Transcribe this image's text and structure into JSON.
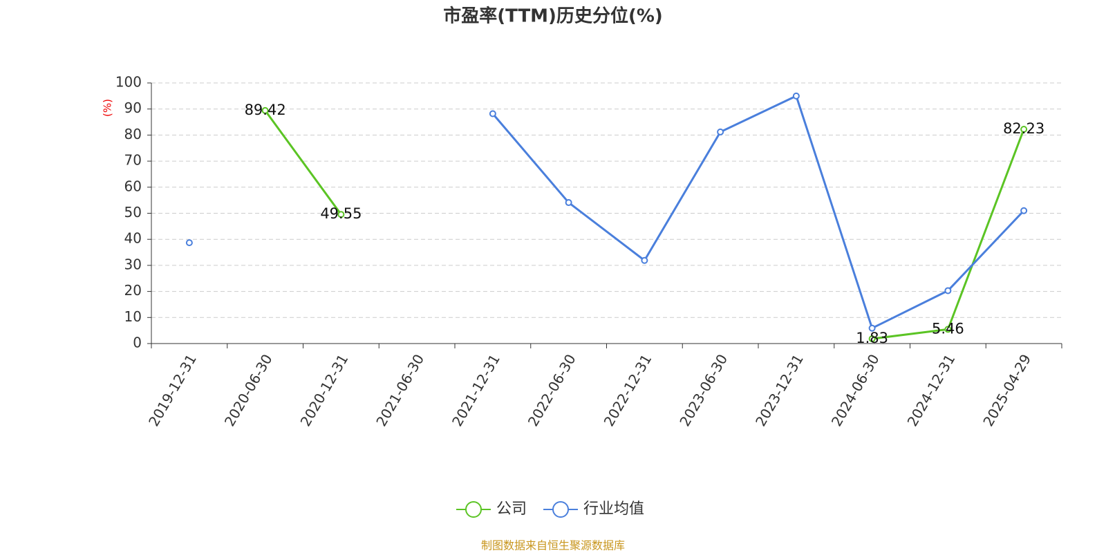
{
  "chart_data": {
    "type": "line",
    "title": "市盈率(TTM)历史分位(%)",
    "y_label": "(%)",
    "categories": [
      "2019-12-31",
      "2020-06-30",
      "2020-12-31",
      "2021-06-30",
      "2021-12-31",
      "2022-06-30",
      "2022-12-31",
      "2023-06-30",
      "2023-12-31",
      "2024-06-30",
      "2024-12-31",
      "2025-04-29"
    ],
    "series": [
      {
        "name": "公司",
        "color": "#5bc424",
        "show_labels": true,
        "values": [
          null,
          89.42,
          49.55,
          null,
          null,
          null,
          null,
          null,
          null,
          1.83,
          5.46,
          82.23
        ]
      },
      {
        "name": "行业均值",
        "color": "#4a7fdc",
        "show_labels": false,
        "values": [
          38.7,
          null,
          null,
          null,
          88.2,
          54.1,
          31.9,
          81.2,
          95.0,
          5.9,
          20.3,
          51.0
        ]
      }
    ],
    "ylim": [
      0,
      100
    ],
    "yticks": [
      0,
      10,
      20,
      30,
      40,
      50,
      60,
      70,
      80,
      90,
      100
    ],
    "grid": true,
    "source": "制图数据来自恒生聚源数据库"
  }
}
